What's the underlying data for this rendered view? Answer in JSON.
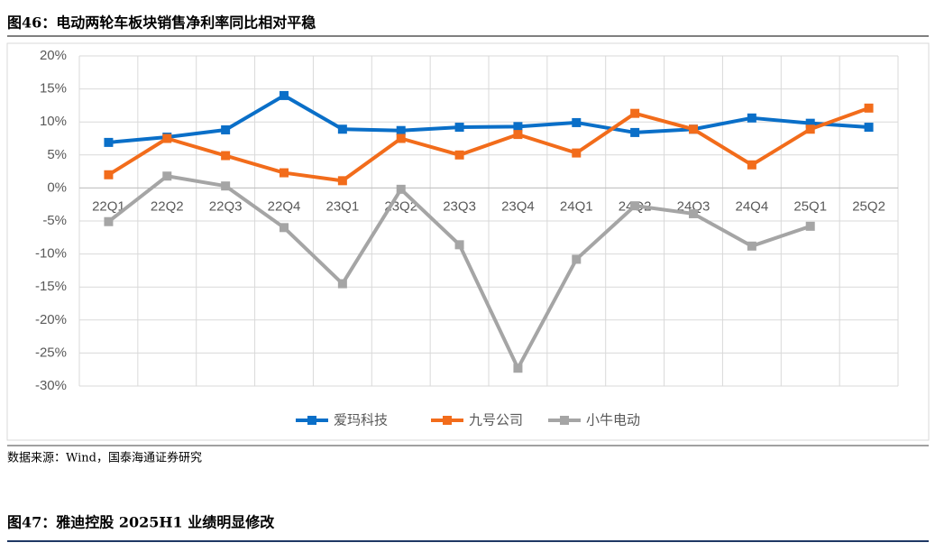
{
  "header": {
    "title": "图46：电动两轮车板块销售净利率同比相对平稳"
  },
  "chart_data": {
    "type": "line",
    "categories": [
      "22Q1",
      "22Q2",
      "22Q3",
      "22Q4",
      "23Q1",
      "23Q2",
      "23Q3",
      "23Q4",
      "24Q1",
      "24Q2",
      "24Q3",
      "24Q4",
      "25Q1",
      "25Q2"
    ],
    "series": [
      {
        "name": "爱玛科技",
        "color": "#0a6fc8",
        "values": [
          6.9,
          7.7,
          8.8,
          14.0,
          8.9,
          8.7,
          9.2,
          9.3,
          9.9,
          8.4,
          8.9,
          10.6,
          9.8,
          9.2
        ]
      },
      {
        "name": "九号公司",
        "color": "#f26c1b",
        "values": [
          2.0,
          7.5,
          4.9,
          2.3,
          1.1,
          7.5,
          5.0,
          8.1,
          5.3,
          11.3,
          8.9,
          3.5,
          8.9,
          12.1
        ]
      },
      {
        "name": "小牛电动",
        "color": "#a5a5a5",
        "values": [
          -5.1,
          1.8,
          0.3,
          -6.0,
          -14.5,
          -0.2,
          -8.6,
          -27.3,
          -10.8,
          -2.7,
          -3.9,
          -8.8,
          -5.8,
          null
        ]
      }
    ],
    "ylim": [
      -30,
      20
    ],
    "yticks": [
      {
        "value": -30,
        "label": "-30%"
      },
      {
        "value": -25,
        "label": "-25%"
      },
      {
        "value": -20,
        "label": "-20%"
      },
      {
        "value": -15,
        "label": "-15%"
      },
      {
        "value": -10,
        "label": "-10%"
      },
      {
        "value": -5,
        "label": "-5%"
      },
      {
        "value": 0,
        "label": "0%"
      },
      {
        "value": 5,
        "label": "5%"
      },
      {
        "value": 10,
        "label": "10%"
      },
      {
        "value": 15,
        "label": "15%"
      },
      {
        "value": 20,
        "label": "20%"
      }
    ],
    "grid": true,
    "legend": "bottom"
  },
  "source": "数据来源：Wind，国泰海通证券研究",
  "next_title": "图47：雅迪控股 2025H1 业绩明显修改"
}
